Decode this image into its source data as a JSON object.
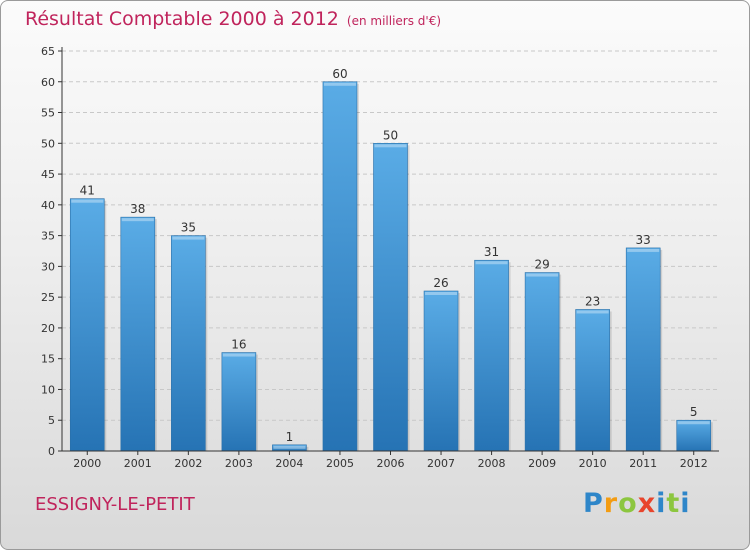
{
  "title": "Résultat Comptable 2000 à 2012",
  "subtitle": "(en milliers d'€)",
  "place_name": "ESSIGNY-LE-PETIT",
  "logo": {
    "letters": [
      "P",
      "r",
      "o",
      "x",
      "i",
      "t",
      "i"
    ],
    "colors": [
      "#2e86c9",
      "#f39c12",
      "#8cc63f",
      "#e8452c",
      "#2e86c9",
      "#8cc63f",
      "#2e86c9"
    ]
  },
  "colors": {
    "title": "#c0245c",
    "bar_top": "#5aace6",
    "bar_bottom": "#2673b4",
    "grid": "#c8c8c8",
    "axis": "#333333"
  },
  "chart_data": {
    "type": "bar",
    "title": "Résultat Comptable 2000 à 2012",
    "subtitle": "(en milliers d'€)",
    "categories": [
      "2000",
      "2001",
      "2002",
      "2003",
      "2004",
      "2005",
      "2006",
      "2007",
      "2008",
      "2009",
      "2010",
      "2011",
      "2012"
    ],
    "values": [
      41,
      38,
      35,
      16,
      1,
      60,
      50,
      26,
      31,
      29,
      23,
      33,
      5
    ],
    "ylim": [
      0,
      65
    ],
    "yticks": [
      0,
      5,
      10,
      15,
      20,
      25,
      30,
      35,
      40,
      45,
      50,
      55,
      60,
      65
    ],
    "grid": true,
    "data_labels": true
  }
}
